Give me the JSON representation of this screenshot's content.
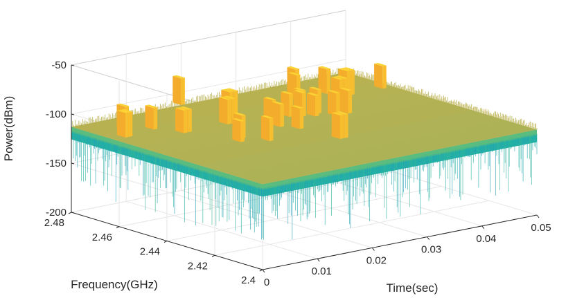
{
  "chart_data": {
    "type": "surface3d",
    "title": "",
    "xlabel": "Time(sec)",
    "ylabel": "Frequency(GHz)",
    "zlabel": "Power(dBm)",
    "xlim": [
      0,
      0.05
    ],
    "ylim": [
      2.4,
      2.48
    ],
    "zlim": [
      -200,
      -50
    ],
    "x_ticks": [
      "0",
      "0.01",
      "0.02",
      "0.03",
      "0.04",
      "0.05"
    ],
    "y_ticks": [
      "2.4",
      "2.42",
      "2.44",
      "2.46",
      "2.48"
    ],
    "z_ticks": [
      "-200",
      "-150",
      "-100",
      "-50"
    ],
    "grid": true,
    "noise_floor_dbm": -113,
    "noise_min_dbm": -165,
    "peak_level_dbm": -88,
    "peaks": [
      {
        "t": 0.002,
        "f": 2.462,
        "p": -88
      },
      {
        "t": 0.0026,
        "f": 2.462,
        "p": -88
      },
      {
        "t": 0.005,
        "f": 2.469,
        "p": -90
      },
      {
        "t": 0.008,
        "f": 2.464,
        "p": -91
      },
      {
        "t": 0.01,
        "f": 2.456,
        "p": -90
      },
      {
        "t": 0.0108,
        "f": 2.456,
        "p": -90
      },
      {
        "t": 0.013,
        "f": 2.439,
        "p": -92
      },
      {
        "t": 0.0145,
        "f": 2.442,
        "p": -90
      },
      {
        "t": 0.0165,
        "f": 2.435,
        "p": -90
      },
      {
        "t": 0.018,
        "f": 2.456,
        "p": -88
      },
      {
        "t": 0.0188,
        "f": 2.456,
        "p": -88
      },
      {
        "t": 0.02,
        "f": 2.48,
        "p": -86
      },
      {
        "t": 0.021,
        "f": 2.462,
        "p": -88
      },
      {
        "t": 0.0218,
        "f": 2.462,
        "p": -88
      },
      {
        "t": 0.0228,
        "f": 2.445,
        "p": -90
      },
      {
        "t": 0.0235,
        "f": 2.45,
        "p": -90
      },
      {
        "t": 0.0242,
        "f": 2.44,
        "p": -92
      },
      {
        "t": 0.025,
        "f": 2.425,
        "p": -89
      },
      {
        "t": 0.0258,
        "f": 2.425,
        "p": -89
      },
      {
        "t": 0.0275,
        "f": 2.452,
        "p": -90
      },
      {
        "t": 0.029,
        "f": 2.45,
        "p": -89
      },
      {
        "t": 0.0298,
        "f": 2.452,
        "p": -89
      },
      {
        "t": 0.0305,
        "f": 2.448,
        "p": -92
      },
      {
        "t": 0.0318,
        "f": 2.45,
        "p": -89
      },
      {
        "t": 0.033,
        "f": 2.445,
        "p": -90
      },
      {
        "t": 0.0345,
        "f": 2.465,
        "p": -88
      },
      {
        "t": 0.0352,
        "f": 2.445,
        "p": -90
      },
      {
        "t": 0.0365,
        "f": 2.47,
        "p": -88
      },
      {
        "t": 0.038,
        "f": 2.455,
        "p": -89
      },
      {
        "t": 0.0388,
        "f": 2.455,
        "p": -89
      },
      {
        "t": 0.04,
        "f": 2.465,
        "p": -88
      },
      {
        "t": 0.0415,
        "f": 2.46,
        "p": -88
      },
      {
        "t": 0.0422,
        "f": 2.46,
        "p": -88
      },
      {
        "t": 0.048,
        "f": 2.46,
        "p": -90
      }
    ],
    "colormap": [
      "#2d8ac9",
      "#20b0a8",
      "#5fbd7a",
      "#a9b35a",
      "#c6b04a",
      "#f2a52a",
      "#fbd233"
    ]
  }
}
